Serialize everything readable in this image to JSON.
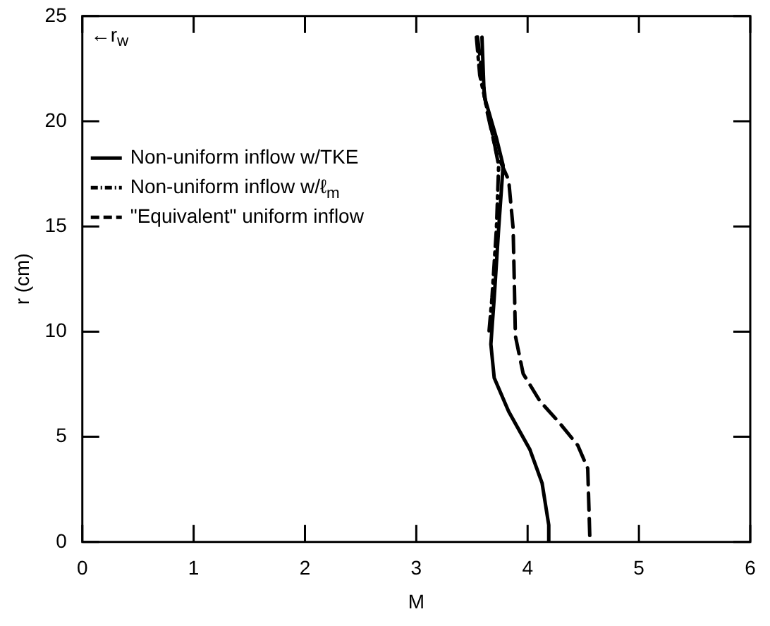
{
  "chart_data": {
    "type": "line",
    "xlabel": "M",
    "ylabel": "r (cm)",
    "xlim": [
      0,
      6
    ],
    "ylim": [
      0,
      25
    ],
    "xticks": [
      0,
      1,
      2,
      3,
      4,
      5,
      6
    ],
    "yticks": [
      0,
      5,
      10,
      15,
      20,
      25
    ],
    "grid": false,
    "legend": "left",
    "marker": "none",
    "annotations": [
      "←r$_{w}$"
    ],
    "series": [
      {
        "name": "Non-uniform inflow w/TKE",
        "color": "#000000",
        "line_style": "solid",
        "x": [
          3.59,
          3.61,
          3.72,
          3.78,
          3.74,
          3.7,
          3.67,
          3.7,
          3.83,
          4.02,
          4.13,
          4.19,
          4.19
        ],
        "values": [
          24.0,
          21.2,
          19.2,
          17.9,
          14.9,
          11.6,
          9.4,
          7.8,
          6.2,
          4.4,
          2.8,
          0.8,
          0
        ]
      },
      {
        "name": "Non-uniform inflow w/ℓ$_{m}$",
        "color": "#000000",
        "line_style": "dashdot",
        "x": [
          3.54,
          3.57,
          3.68,
          3.74,
          3.72,
          3.68,
          3.65
        ],
        "values": [
          24.0,
          22.2,
          19.5,
          17.9,
          14.9,
          11.6,
          9.8
        ]
      },
      {
        "name": "\"Equivalent\" uniform inflow",
        "color": "#000000",
        "line_style": "dashed",
        "x": [
          3.55,
          3.63,
          3.72,
          3.83,
          3.87,
          3.88,
          3.89,
          3.96,
          4.11,
          4.28,
          4.45,
          4.54,
          4.56
        ],
        "values": [
          24.0,
          20.6,
          18.5,
          17.2,
          14.9,
          12.5,
          9.8,
          8.0,
          6.7,
          5.7,
          4.6,
          3.5,
          0
        ]
      }
    ]
  }
}
